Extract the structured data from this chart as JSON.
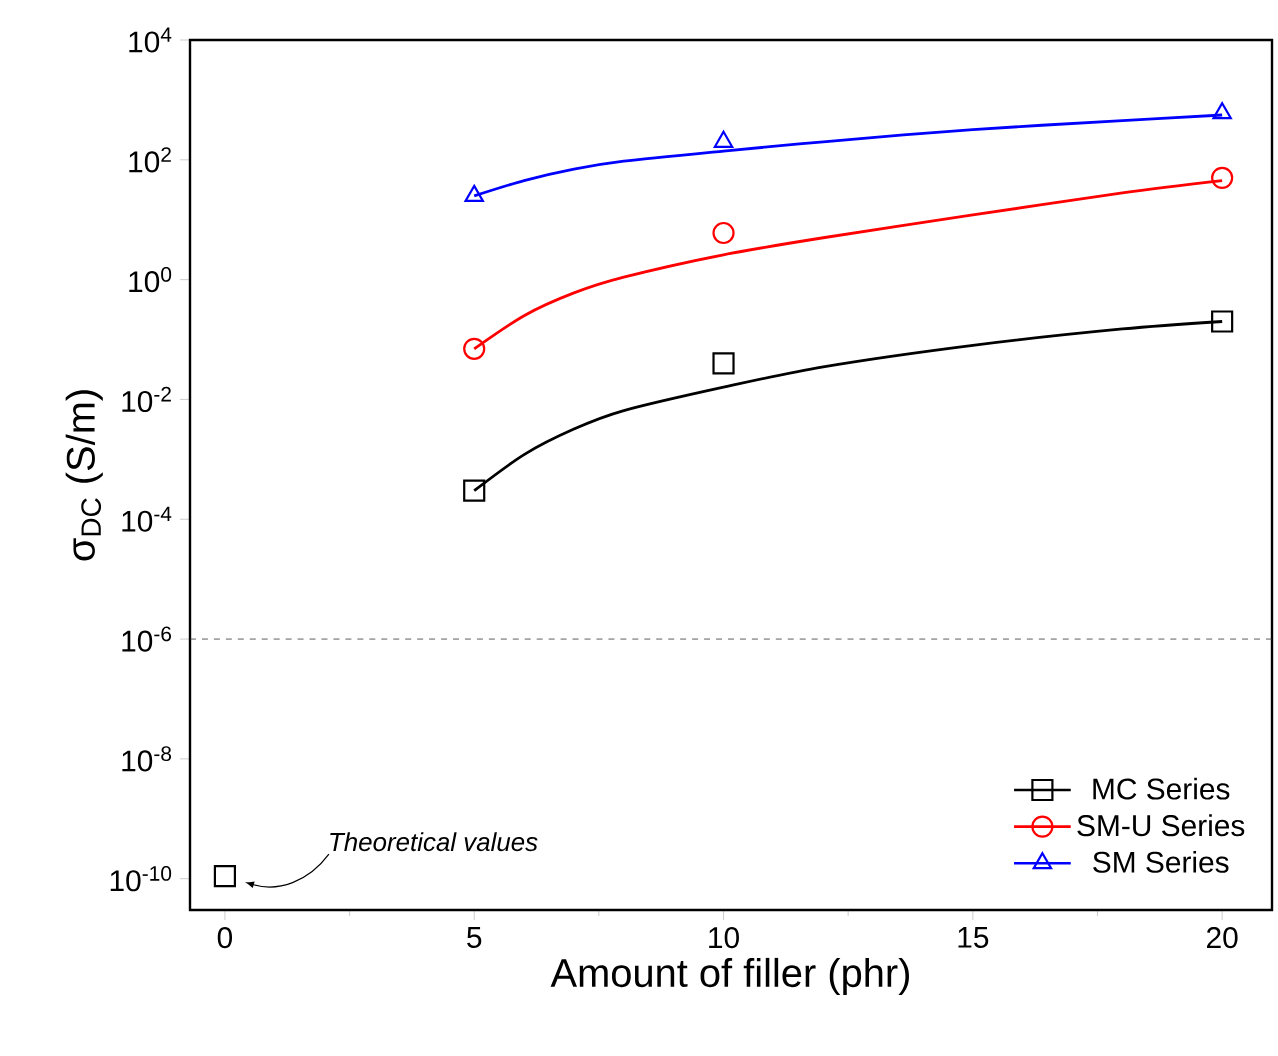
{
  "chart_data": {
    "type": "scatter",
    "xlabel": "Amount of filler (phr)",
    "ylabel": "σ$_{DC}$ (S/m)",
    "log": "y",
    "xlim": [
      -0.7,
      21
    ],
    "ylim": [
      3e-11,
      10000
    ],
    "xticks": [
      0,
      5,
      10,
      15,
      20
    ],
    "yticks": [
      {
        "value": 1e-10,
        "label": "10$^{-10}$"
      },
      {
        "value": 1e-08,
        "label": "10$^{-8}$"
      },
      {
        "value": 1e-06,
        "label": "10$^{-6}$"
      },
      {
        "value": 0.0001,
        "label": "10$^{-4}$"
      },
      {
        "value": 0.01,
        "label": "10$^{-2}$"
      },
      {
        "value": 1,
        "label": "10$^{0}$"
      },
      {
        "value": 100,
        "label": "10$^{2}$"
      },
      {
        "value": 10000,
        "label": "10$^{4}$"
      }
    ],
    "legend": "bottom right",
    "series": [
      {
        "name": "MC Series",
        "color": "#000000",
        "marker": "square",
        "x": [
          5,
          10,
          20
        ],
        "values": [
          0.0003,
          0.04,
          0.2
        ]
      },
      {
        "name": "SM-U Series",
        "color": "#ff0000",
        "marker": "circle",
        "x": [
          5,
          10,
          20
        ],
        "values": [
          0.07,
          6,
          50
        ]
      },
      {
        "name": "SM Series",
        "color": "#0000ff",
        "marker": "triangle",
        "x": [
          5,
          10,
          20
        ],
        "values": [
          25,
          200,
          600
        ]
      },
      {
        "color": "#000000",
        "marker": "square",
        "x": [
          0
        ],
        "values": [
          1.1e-10
        ]
      },
      {
        "type": "line",
        "color": "#000000",
        "marker": "none",
        "x": [
          5,
          6,
          7,
          8,
          10,
          12,
          15,
          18,
          20
        ],
        "values": [
          0.0003,
          0.0012,
          0.0032,
          0.0065,
          0.016,
          0.035,
          0.08,
          0.15,
          0.2
        ]
      },
      {
        "type": "line",
        "color": "#ff0000",
        "marker": "none",
        "x": [
          5,
          6,
          7,
          8,
          10,
          12,
          15,
          18,
          20
        ],
        "values": [
          0.07,
          0.25,
          0.6,
          1.1,
          2.6,
          5,
          12,
          28,
          45
        ]
      },
      {
        "type": "line",
        "color": "#0000ff",
        "marker": "none",
        "x": [
          5,
          6,
          7,
          8,
          10,
          12,
          15,
          18,
          20
        ],
        "values": [
          25,
          45,
          70,
          95,
          140,
          200,
          320,
          450,
          560
        ]
      }
    ],
    "ref_lines": [
      {
        "axis": "y",
        "value": 1e-06,
        "color": "#333333",
        "line_style": "dashed"
      }
    ],
    "annotations": [
      "*Theoretical values*"
    ]
  }
}
